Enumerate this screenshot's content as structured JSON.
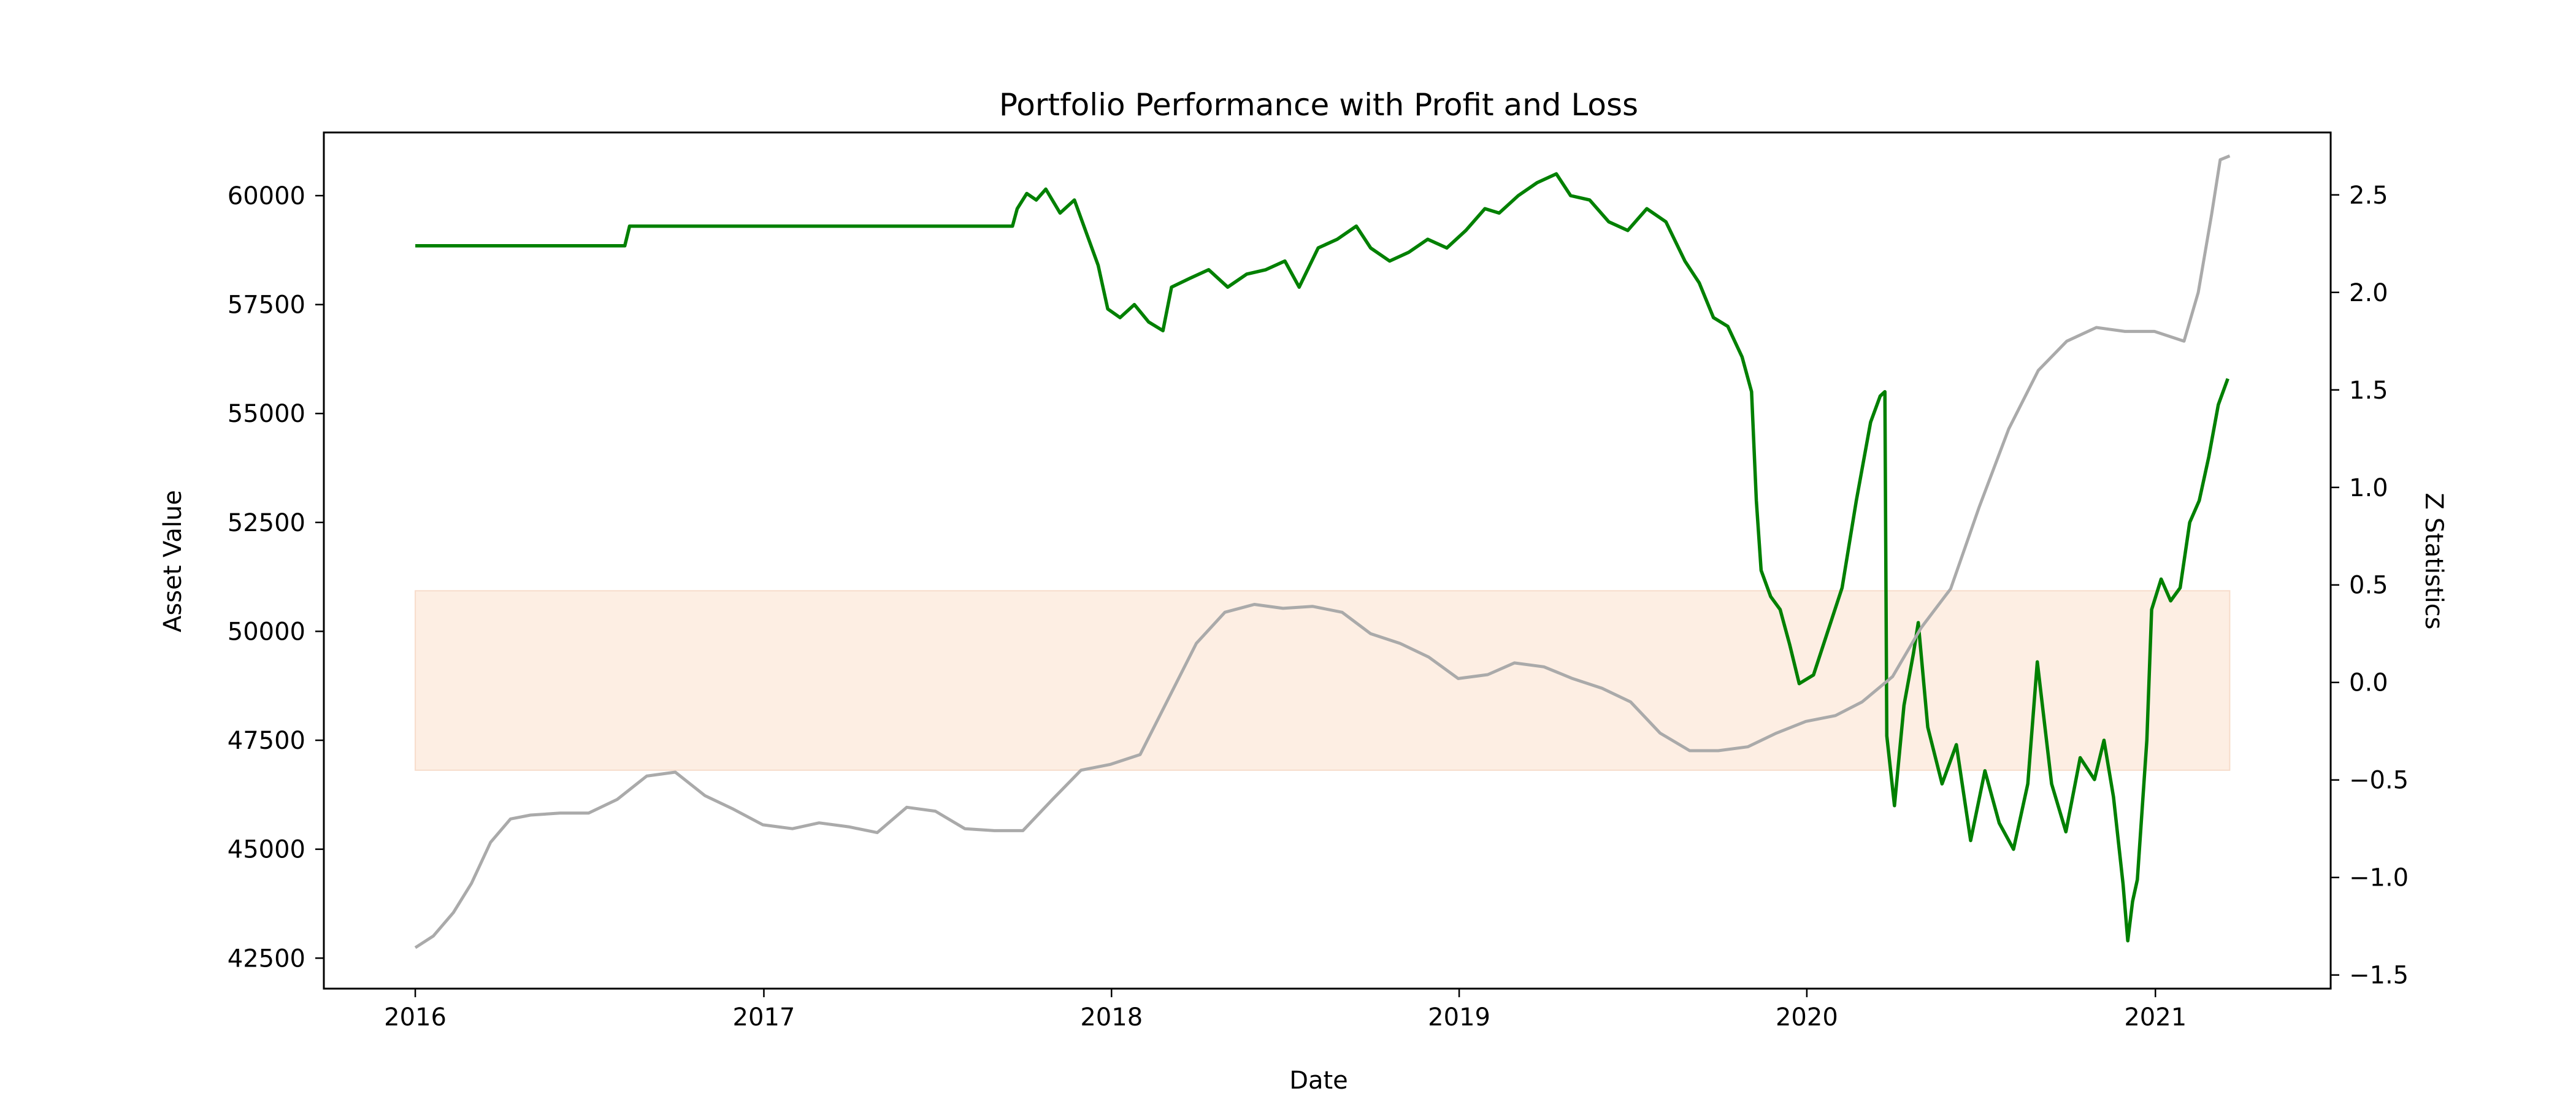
{
  "chart_data": {
    "type": "line",
    "title": "Portfolio Performance with Profit and Loss",
    "xlabel": "Date",
    "ylabel": "Asset Value",
    "y2label": "Z Statistics",
    "x_ticks": [
      "2016",
      "2017",
      "2018",
      "2019",
      "2020",
      "2021"
    ],
    "y_ticks": [
      "42500",
      "45000",
      "47500",
      "50000",
      "52500",
      "55000",
      "57500",
      "60000"
    ],
    "y2_ticks": [
      "−1.5",
      "−1.0",
      "−0.5",
      "0.0",
      "0.5",
      "1.0",
      "1.5",
      "2.0",
      "2.5"
    ],
    "xlim": [
      "2015-09-27",
      "2021-07-04"
    ],
    "ylim": [
      41800,
      61450
    ],
    "y2lim": [
      -1.57,
      2.82
    ],
    "grid": false,
    "band": {
      "axis": "y2",
      "from": -0.45,
      "to": 0.47,
      "x_start": "2016-01-01",
      "x_end": "2021-03-20",
      "color": "#fdeee3"
    },
    "series": [
      {
        "axis": "y",
        "color": "#008000",
        "points": [
          [
            "2016-01-01",
            58850
          ],
          [
            "2016-08-08",
            58850
          ],
          [
            "2016-08-13",
            59300
          ],
          [
            "2017-09-19",
            59300
          ],
          [
            "2017-09-24",
            59700
          ],
          [
            "2017-10-04",
            60050
          ],
          [
            "2017-10-14",
            59900
          ],
          [
            "2017-10-24",
            60150
          ],
          [
            "2017-11-08",
            59600
          ],
          [
            "2017-11-23",
            59900
          ],
          [
            "2017-12-08",
            59000
          ],
          [
            "2017-12-18",
            58400
          ],
          [
            "2017-12-28",
            57400
          ],
          [
            "2018-01-10",
            57200
          ],
          [
            "2018-01-25",
            57500
          ],
          [
            "2018-02-09",
            57100
          ],
          [
            "2018-02-24",
            56900
          ],
          [
            "2018-03-05",
            57900
          ],
          [
            "2018-03-24",
            58100
          ],
          [
            "2018-04-13",
            58300
          ],
          [
            "2018-05-03",
            57900
          ],
          [
            "2018-05-23",
            58200
          ],
          [
            "2018-06-12",
            58300
          ],
          [
            "2018-07-02",
            58500
          ],
          [
            "2018-07-17",
            57900
          ],
          [
            "2018-08-06",
            58800
          ],
          [
            "2018-08-26",
            59000
          ],
          [
            "2018-09-15",
            59300
          ],
          [
            "2018-09-30",
            58800
          ],
          [
            "2018-10-20",
            58500
          ],
          [
            "2018-11-09",
            58700
          ],
          [
            "2018-11-29",
            59000
          ],
          [
            "2018-12-19",
            58800
          ],
          [
            "2019-01-08",
            59200
          ],
          [
            "2019-01-28",
            59700
          ],
          [
            "2019-02-12",
            59600
          ],
          [
            "2019-03-04",
            60000
          ],
          [
            "2019-03-24",
            60300
          ],
          [
            "2019-04-13",
            60500
          ],
          [
            "2019-04-28",
            60000
          ],
          [
            "2019-05-18",
            59900
          ],
          [
            "2019-06-07",
            59400
          ],
          [
            "2019-06-27",
            59200
          ],
          [
            "2019-07-17",
            59700
          ],
          [
            "2019-08-06",
            59400
          ],
          [
            "2019-08-26",
            58500
          ],
          [
            "2019-09-10",
            58000
          ],
          [
            "2019-09-25",
            57200
          ],
          [
            "2019-10-10",
            57000
          ],
          [
            "2019-10-25",
            56300
          ],
          [
            "2019-11-04",
            55500
          ],
          [
            "2019-11-09",
            53000
          ],
          [
            "2019-11-14",
            51400
          ],
          [
            "2019-11-24",
            50800
          ],
          [
            "2019-12-04",
            50500
          ],
          [
            "2019-12-14",
            49700
          ],
          [
            "2019-12-24",
            48800
          ],
          [
            "2020-01-08",
            49000
          ],
          [
            "2020-01-23",
            50000
          ],
          [
            "2020-02-07",
            51000
          ],
          [
            "2020-02-22",
            53000
          ],
          [
            "2020-03-08",
            54800
          ],
          [
            "2020-03-18",
            55400
          ],
          [
            "2020-03-23",
            55500
          ],
          [
            "2020-03-25",
            47600
          ],
          [
            "2020-04-02",
            46000
          ],
          [
            "2020-04-12",
            48300
          ],
          [
            "2020-04-22",
            49500
          ],
          [
            "2020-04-27",
            50200
          ],
          [
            "2020-05-07",
            47800
          ],
          [
            "2020-05-22",
            46500
          ],
          [
            "2020-06-06",
            47400
          ],
          [
            "2020-06-21",
            45200
          ],
          [
            "2020-07-06",
            46800
          ],
          [
            "2020-07-21",
            45600
          ],
          [
            "2020-08-05",
            45000
          ],
          [
            "2020-08-20",
            46500
          ],
          [
            "2020-08-30",
            49300
          ],
          [
            "2020-09-14",
            46500
          ],
          [
            "2020-09-29",
            45400
          ],
          [
            "2020-10-14",
            47100
          ],
          [
            "2020-10-29",
            46600
          ],
          [
            "2020-11-08",
            47500
          ],
          [
            "2020-11-18",
            46200
          ],
          [
            "2020-11-28",
            44200
          ],
          [
            "2020-12-03",
            42900
          ],
          [
            "2020-12-08",
            43800
          ],
          [
            "2020-12-13",
            44300
          ],
          [
            "2020-12-23",
            47500
          ],
          [
            "2020-12-28",
            50500
          ],
          [
            "2021-01-07",
            51200
          ],
          [
            "2021-01-17",
            50700
          ],
          [
            "2021-01-27",
            51000
          ],
          [
            "2021-02-06",
            52500
          ],
          [
            "2021-02-16",
            53000
          ],
          [
            "2021-02-26",
            54000
          ],
          [
            "2021-03-08",
            55200
          ],
          [
            "2021-03-18",
            55800
          ]
        ]
      },
      {
        "axis": "y2",
        "color": "#aaaaaa",
        "points": [
          [
            "2016-01-01",
            -1.36
          ],
          [
            "2016-01-20",
            -1.3
          ],
          [
            "2016-02-10",
            -1.18
          ],
          [
            "2016-02-29",
            -1.03
          ],
          [
            "2016-03-20",
            -0.82
          ],
          [
            "2016-04-10",
            -0.7
          ],
          [
            "2016-05-01",
            -0.68
          ],
          [
            "2016-06-01",
            -0.67
          ],
          [
            "2016-07-01",
            -0.67
          ],
          [
            "2016-07-31",
            -0.6
          ],
          [
            "2016-08-31",
            -0.48
          ],
          [
            "2016-09-30",
            -0.46
          ],
          [
            "2016-10-31",
            -0.58
          ],
          [
            "2016-11-30",
            -0.65
          ],
          [
            "2016-12-31",
            -0.73
          ],
          [
            "2017-01-31",
            -0.75
          ],
          [
            "2017-02-28",
            -0.72
          ],
          [
            "2017-03-31",
            -0.74
          ],
          [
            "2017-04-30",
            -0.77
          ],
          [
            "2017-05-31",
            -0.64
          ],
          [
            "2017-06-30",
            -0.66
          ],
          [
            "2017-07-31",
            -0.75
          ],
          [
            "2017-08-31",
            -0.76
          ],
          [
            "2017-09-30",
            -0.76
          ],
          [
            "2017-10-31",
            -0.6
          ],
          [
            "2017-11-30",
            -0.45
          ],
          [
            "2017-12-31",
            -0.42
          ],
          [
            "2018-01-31",
            -0.37
          ],
          [
            "2018-02-28",
            -0.1
          ],
          [
            "2018-03-31",
            0.2
          ],
          [
            "2018-04-30",
            0.36
          ],
          [
            "2018-05-31",
            0.4
          ],
          [
            "2018-06-30",
            0.38
          ],
          [
            "2018-07-31",
            0.39
          ],
          [
            "2018-08-31",
            0.36
          ],
          [
            "2018-09-30",
            0.25
          ],
          [
            "2018-10-31",
            0.2
          ],
          [
            "2018-11-30",
            0.13
          ],
          [
            "2018-12-31",
            0.02
          ],
          [
            "2019-01-31",
            0.04
          ],
          [
            "2019-02-28",
            0.1
          ],
          [
            "2019-03-31",
            0.08
          ],
          [
            "2019-04-30",
            0.02
          ],
          [
            "2019-05-31",
            -0.03
          ],
          [
            "2019-06-30",
            -0.1
          ],
          [
            "2019-07-31",
            -0.26
          ],
          [
            "2019-08-31",
            -0.35
          ],
          [
            "2019-09-30",
            -0.35
          ],
          [
            "2019-10-31",
            -0.33
          ],
          [
            "2019-11-30",
            -0.26
          ],
          [
            "2019-12-31",
            -0.2
          ],
          [
            "2020-01-31",
            -0.17
          ],
          [
            "2020-02-28",
            -0.1
          ],
          [
            "2020-03-31",
            0.03
          ],
          [
            "2020-04-30",
            0.28
          ],
          [
            "2020-05-31",
            0.48
          ],
          [
            "2020-06-30",
            0.9
          ],
          [
            "2020-07-31",
            1.3
          ],
          [
            "2020-08-31",
            1.6
          ],
          [
            "2020-09-30",
            1.75
          ],
          [
            "2020-10-31",
            1.82
          ],
          [
            "2020-11-30",
            1.8
          ],
          [
            "2020-12-31",
            1.8
          ],
          [
            "2021-01-31",
            1.75
          ],
          [
            "2021-02-15",
            2.0
          ],
          [
            "2021-03-01",
            2.4
          ],
          [
            "2021-03-10",
            2.68
          ],
          [
            "2021-03-20",
            2.7
          ]
        ]
      }
    ]
  }
}
